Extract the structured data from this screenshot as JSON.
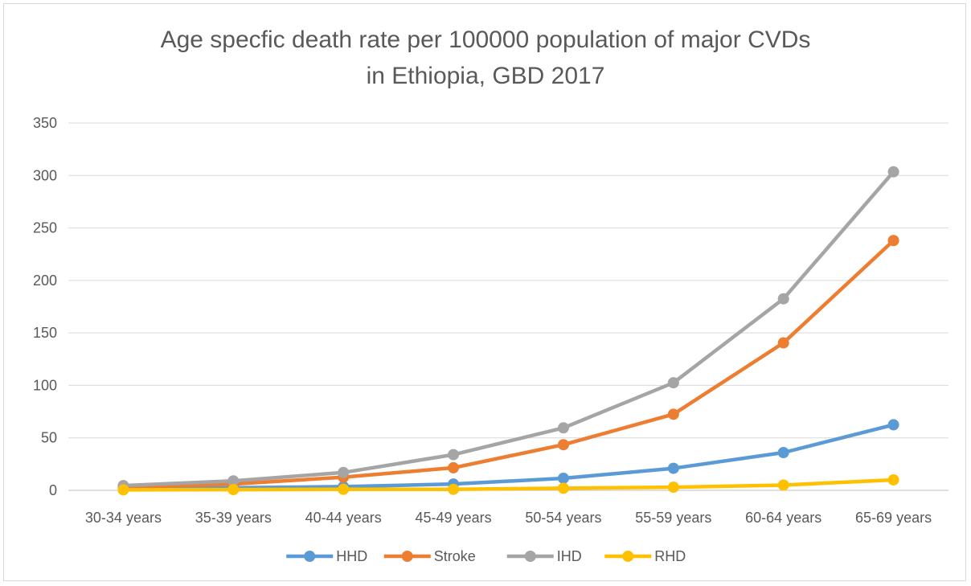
{
  "chart_data": {
    "type": "line",
    "title_lines": [
      "Age specfic death rate per 100000 population of major CVDs",
      "in Ethiopia, GBD 2017"
    ],
    "categories": [
      "30-34 years",
      "35-39 years",
      "40-44 years",
      "45-49 years",
      "50-54 years",
      "55-59 years",
      "60-64 years",
      "65-69 years"
    ],
    "yticks": [
      "0",
      "50",
      "100",
      "150",
      "200",
      "250",
      "300",
      "350"
    ],
    "ylim": [
      0,
      350
    ],
    "grid": true,
    "legend_position": "bottom",
    "series": [
      {
        "name": "HHD",
        "color": "#5b9bd5",
        "values": [
          1.5,
          2.5,
          3.5,
          6,
          11.5,
          21,
          36,
          62.5
        ]
      },
      {
        "name": "Stroke",
        "color": "#ed7d31",
        "values": [
          3,
          6,
          12.5,
          21.5,
          43.5,
          72.5,
          140.5,
          238
        ]
      },
      {
        "name": "IHD",
        "color": "#a5a5a5",
        "values": [
          4.5,
          9,
          17,
          34,
          59.5,
          102.5,
          182.5,
          303.5
        ]
      },
      {
        "name": "RHD",
        "color": "#ffc000",
        "values": [
          0.5,
          0.7,
          1,
          1,
          2,
          3,
          5,
          10
        ]
      }
    ]
  }
}
